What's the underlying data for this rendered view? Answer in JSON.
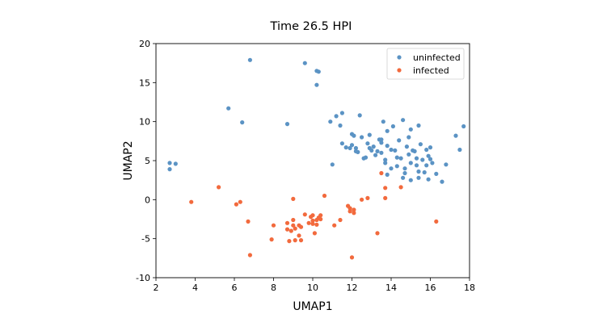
{
  "chart_data": {
    "type": "scatter",
    "title": "Time 26.5 HPI",
    "xlabel": "UMAP1",
    "ylabel": "UMAP2",
    "xlim": [
      2,
      18
    ],
    "ylim": [
      -10,
      20
    ],
    "xticks": [
      "2",
      "4",
      "6",
      "8",
      "10",
      "12",
      "14",
      "16",
      "18"
    ],
    "yticks": [
      "-10",
      "-5",
      "0",
      "5",
      "10",
      "15",
      "20"
    ],
    "grid": false,
    "legend_position": "top-right",
    "series": [
      {
        "name": "uninfected",
        "color": "#5b93c4",
        "points": [
          [
            2.7,
            4.7
          ],
          [
            2.7,
            3.9
          ],
          [
            3.0,
            4.6
          ],
          [
            5.7,
            11.7
          ],
          [
            6.4,
            9.9
          ],
          [
            6.8,
            17.9
          ],
          [
            8.7,
            9.7
          ],
          [
            9.6,
            17.5
          ],
          [
            10.2,
            16.5
          ],
          [
            10.3,
            16.4
          ],
          [
            10.2,
            14.7
          ],
          [
            10.9,
            10.0
          ],
          [
            11.0,
            4.5
          ],
          [
            11.2,
            10.7
          ],
          [
            11.5,
            11.1
          ],
          [
            11.4,
            9.5
          ],
          [
            11.5,
            7.2
          ],
          [
            11.7,
            6.7
          ],
          [
            11.9,
            6.6
          ],
          [
            12.0,
            7.0
          ],
          [
            12.0,
            8.4
          ],
          [
            12.1,
            8.2
          ],
          [
            12.2,
            6.6
          ],
          [
            12.3,
            6.1
          ],
          [
            12.2,
            6.2
          ],
          [
            12.4,
            10.8
          ],
          [
            12.5,
            8.0
          ],
          [
            12.6,
            5.3
          ],
          [
            12.7,
            5.4
          ],
          [
            12.8,
            7.2
          ],
          [
            12.9,
            8.3
          ],
          [
            12.9,
            6.6
          ],
          [
            13.0,
            6.3
          ],
          [
            13.1,
            6.8
          ],
          [
            13.2,
            5.7
          ],
          [
            13.3,
            6.2
          ],
          [
            13.4,
            7.7
          ],
          [
            13.5,
            6.0
          ],
          [
            13.5,
            7.3
          ],
          [
            13.5,
            7.7
          ],
          [
            13.6,
            10.0
          ],
          [
            13.7,
            5.1
          ],
          [
            13.7,
            4.7
          ],
          [
            13.8,
            3.2
          ],
          [
            13.8,
            6.9
          ],
          [
            13.8,
            8.8
          ],
          [
            14.0,
            6.4
          ],
          [
            14.0,
            4.0
          ],
          [
            14.1,
            9.4
          ],
          [
            14.2,
            6.3
          ],
          [
            14.3,
            5.4
          ],
          [
            14.3,
            4.3
          ],
          [
            14.4,
            7.6
          ],
          [
            14.5,
            5.3
          ],
          [
            14.6,
            2.8
          ],
          [
            14.6,
            10.2
          ],
          [
            14.7,
            4.0
          ],
          [
            14.7,
            3.4
          ],
          [
            14.8,
            6.8
          ],
          [
            14.9,
            8.0
          ],
          [
            14.9,
            5.8
          ],
          [
            15.0,
            4.7
          ],
          [
            15.0,
            2.5
          ],
          [
            15.0,
            9.0
          ],
          [
            15.1,
            6.3
          ],
          [
            15.2,
            6.2
          ],
          [
            15.3,
            5.3
          ],
          [
            15.3,
            4.4
          ],
          [
            15.4,
            3.6
          ],
          [
            15.4,
            2.8
          ],
          [
            15.4,
            9.5
          ],
          [
            15.5,
            7.1
          ],
          [
            15.6,
            5.1
          ],
          [
            15.7,
            3.5
          ],
          [
            15.8,
            6.4
          ],
          [
            15.8,
            4.4
          ],
          [
            15.9,
            5.6
          ],
          [
            15.9,
            2.6
          ],
          [
            16.0,
            6.7
          ],
          [
            16.0,
            5.2
          ],
          [
            16.1,
            4.7
          ],
          [
            16.3,
            3.3
          ],
          [
            16.6,
            2.3
          ],
          [
            16.8,
            4.5
          ],
          [
            17.3,
            8.2
          ],
          [
            17.5,
            6.4
          ],
          [
            17.7,
            9.4
          ]
        ]
      },
      {
        "name": "infected",
        "color": "#f26a3d",
        "points": [
          [
            3.8,
            -0.3
          ],
          [
            5.2,
            1.6
          ],
          [
            6.1,
            -0.6
          ],
          [
            6.3,
            -0.3
          ],
          [
            6.7,
            -2.8
          ],
          [
            6.8,
            -7.1
          ],
          [
            7.9,
            -5.1
          ],
          [
            8.0,
            -3.3
          ],
          [
            8.7,
            -3.0
          ],
          [
            8.7,
            -3.8
          ],
          [
            8.8,
            -5.3
          ],
          [
            8.9,
            -4.0
          ],
          [
            9.0,
            0.1
          ],
          [
            9.0,
            -3.3
          ],
          [
            9.0,
            -2.6
          ],
          [
            9.1,
            -3.7
          ],
          [
            9.1,
            -5.2
          ],
          [
            9.3,
            -3.3
          ],
          [
            9.3,
            -4.6
          ],
          [
            9.4,
            -5.2
          ],
          [
            9.4,
            -3.5
          ],
          [
            9.6,
            -1.9
          ],
          [
            9.8,
            -3.0
          ],
          [
            9.9,
            -2.2
          ],
          [
            10.0,
            -2.0
          ],
          [
            10.0,
            -2.7
          ],
          [
            10.0,
            -3.1
          ],
          [
            10.1,
            -4.3
          ],
          [
            10.2,
            -2.6
          ],
          [
            10.2,
            -3.2
          ],
          [
            10.3,
            -2.3
          ],
          [
            10.4,
            -2.0
          ],
          [
            10.4,
            -2.5
          ],
          [
            10.6,
            0.5
          ],
          [
            11.1,
            -3.3
          ],
          [
            11.4,
            -2.6
          ],
          [
            11.8,
            -0.8
          ],
          [
            11.9,
            -1.1
          ],
          [
            11.9,
            -1.5
          ],
          [
            12.0,
            -7.4
          ],
          [
            12.1,
            -1.3
          ],
          [
            12.1,
            -1.7
          ],
          [
            12.5,
            0.0
          ],
          [
            12.8,
            0.2
          ],
          [
            13.3,
            -4.3
          ],
          [
            13.5,
            3.4
          ],
          [
            13.7,
            0.2
          ],
          [
            13.7,
            1.5
          ],
          [
            14.5,
            1.6
          ],
          [
            16.3,
            -2.8
          ]
        ]
      }
    ]
  }
}
